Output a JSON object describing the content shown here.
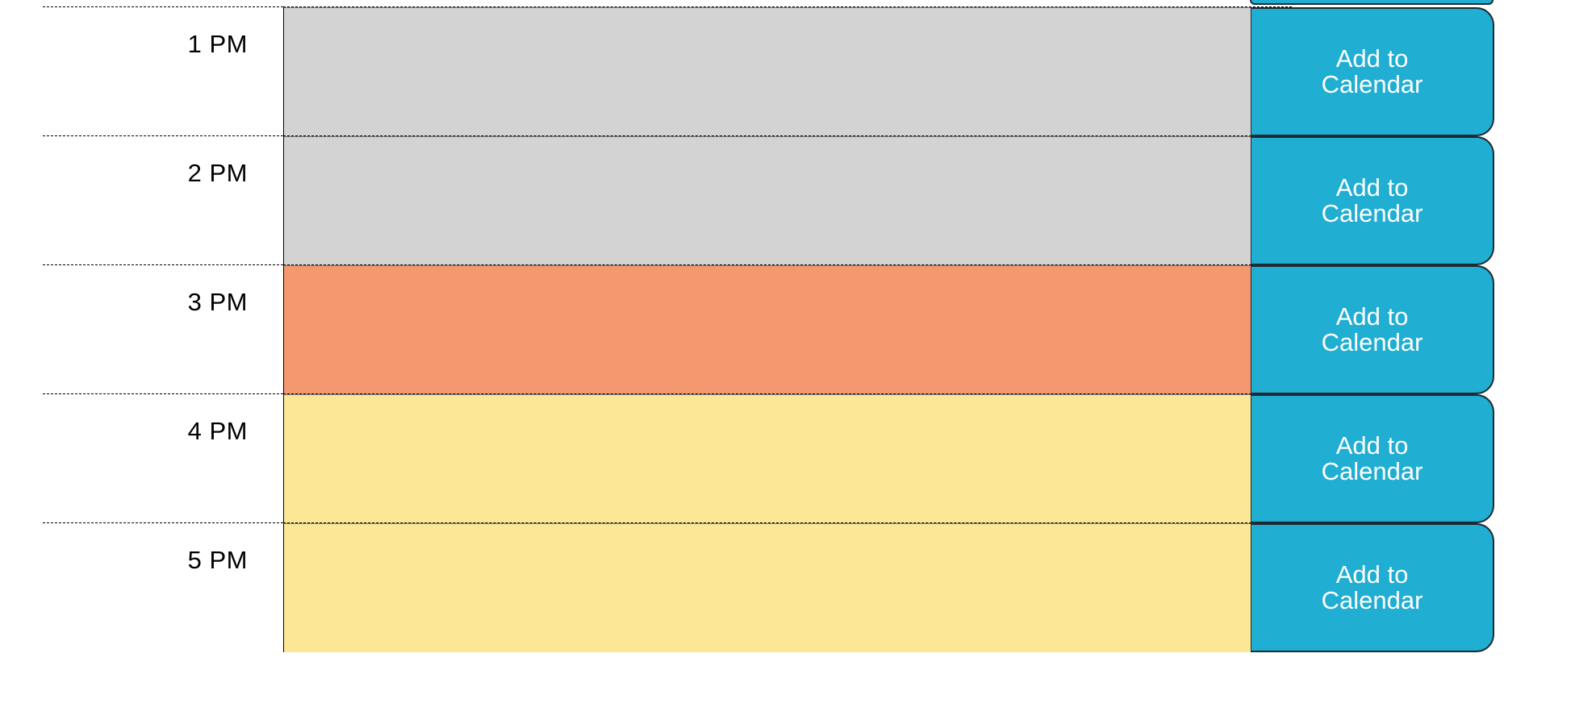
{
  "rows": [
    {
      "hour": "1 PM",
      "status": "past",
      "button": "Add to Calendar"
    },
    {
      "hour": "2 PM",
      "status": "past",
      "button": "Add to Calendar"
    },
    {
      "hour": "3 PM",
      "status": "present",
      "button": "Add to Calendar"
    },
    {
      "hour": "4 PM",
      "status": "future",
      "button": "Add to Calendar"
    },
    {
      "hour": "5 PM",
      "status": "future",
      "button": "Add to Calendar"
    }
  ],
  "colors": {
    "past": "#d3d3d3",
    "present": "#f4986f",
    "future": "#fce797",
    "button": "#20aed3"
  }
}
